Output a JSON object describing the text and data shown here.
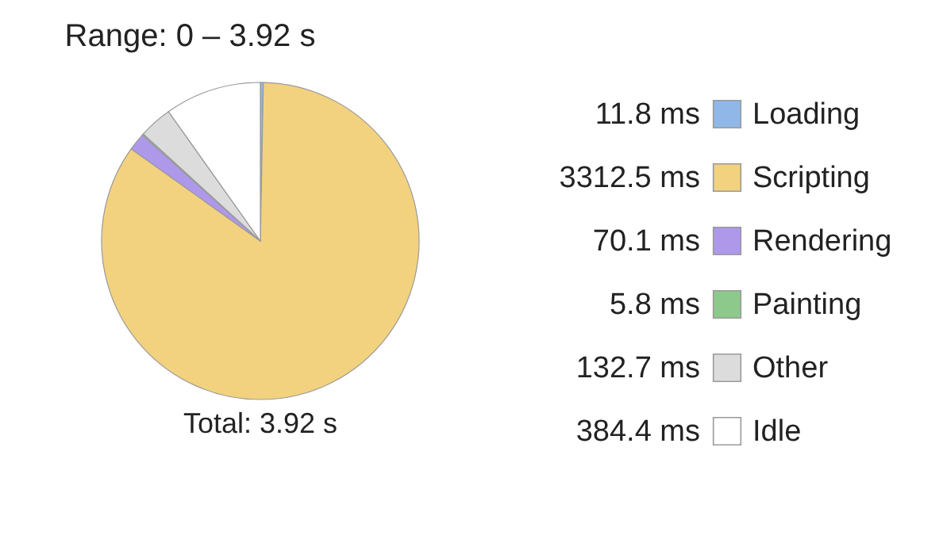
{
  "chart_data": {
    "type": "pie",
    "title": "Range: 0 – 3.92 s",
    "categories": [
      "Loading",
      "Scripting",
      "Rendering",
      "Painting",
      "Other",
      "Idle"
    ],
    "values": [
      11.8,
      3312.5,
      70.1,
      5.8,
      132.7,
      384.4
    ],
    "value_labels": [
      "11.8 ms",
      "3312.5 ms",
      "70.1 ms",
      "5.8 ms",
      "132.7 ms",
      "384.4 ms"
    ],
    "colors": [
      "#8fb8e8",
      "#f3d27f",
      "#ae98ea",
      "#8ec98c",
      "#dcdcdc",
      "#ffffff"
    ],
    "legend": "right",
    "annotations": [
      "Total: 3.92 s"
    ]
  }
}
